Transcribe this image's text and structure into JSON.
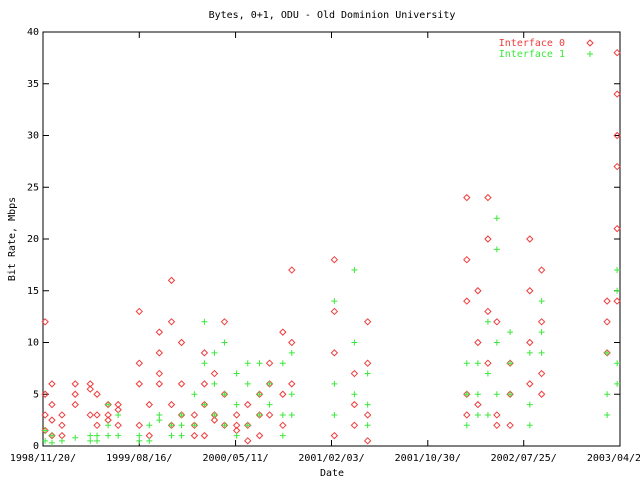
{
  "chart_data": {
    "type": "scatter",
    "title": "Bytes, 0+1, ODU - Old Dominion University",
    "x_label": "Date",
    "y_label": "Bit Rate, Mbps",
    "xlim": [
      "1998-11-20",
      "2003-04-20"
    ],
    "xticks": [
      {
        "value": "1998-11-20",
        "label": "1998/11/20/"
      },
      {
        "value": "1999-08-16",
        "label": "1999/08/16/"
      },
      {
        "value": "2000-05-11",
        "label": "2000/05/11/"
      },
      {
        "value": "2001-02-03",
        "label": "2001/02/03/"
      },
      {
        "value": "2001-10-30",
        "label": "2001/10/30/"
      },
      {
        "value": "2002-07-25",
        "label": "2002/07/25/"
      },
      {
        "value": "2003-04-20",
        "label": "2003/04/20/"
      }
    ],
    "ylim": [
      0,
      40
    ],
    "yticks": [
      0,
      5,
      10,
      15,
      20,
      25,
      30,
      35,
      40
    ],
    "legend": "top-right",
    "series": [
      {
        "name": "Interface 0",
        "color": "#f03c3c",
        "marker": "diamond",
        "x": [
          "1998-11-26",
          "1998-11-26",
          "1998-11-26",
          "1998-11-26",
          "1998-12-15",
          "1998-12-15",
          "1998-12-15",
          "1998-12-15",
          "1999-01-12",
          "1999-01-12",
          "1999-01-12",
          "1999-02-18",
          "1999-02-18",
          "1999-02-18",
          "1999-04-01",
          "1999-04-01",
          "1999-04-01",
          "1999-04-20",
          "1999-04-20",
          "1999-04-20",
          "1999-05-21",
          "1999-05-21",
          "1999-05-21",
          "1999-06-18",
          "1999-06-18",
          "1999-06-18",
          "1999-08-16",
          "1999-08-16",
          "1999-08-16",
          "1999-08-16",
          "1999-09-13",
          "1999-09-13",
          "1999-10-11",
          "1999-10-11",
          "1999-10-11",
          "1999-10-11",
          "1999-11-14",
          "1999-11-14",
          "1999-11-14",
          "1999-11-14",
          "1999-12-12",
          "1999-12-12",
          "1999-12-12",
          "2000-01-17",
          "2000-01-17",
          "2000-01-17",
          "2000-02-14",
          "2000-02-14",
          "2000-02-14",
          "2000-02-14",
          "2000-03-13",
          "2000-03-13",
          "2000-03-13",
          "2000-04-10",
          "2000-04-10",
          "2000-04-10",
          "2000-05-14",
          "2000-05-14",
          "2000-05-14",
          "2000-06-14",
          "2000-06-14",
          "2000-06-14",
          "2000-07-17",
          "2000-07-17",
          "2000-07-17",
          "2000-08-14",
          "2000-08-14",
          "2000-08-14",
          "2000-09-20",
          "2000-09-20",
          "2000-09-20",
          "2000-10-15",
          "2000-10-15",
          "2000-10-15",
          "2001-02-11",
          "2001-02-11",
          "2001-02-11",
          "2001-02-11",
          "2001-04-08",
          "2001-04-08",
          "2001-04-08",
          "2001-05-15",
          "2001-05-15",
          "2001-05-15",
          "2001-05-15",
          "2002-02-16",
          "2002-02-16",
          "2002-02-16",
          "2002-02-16",
          "2002-02-16",
          "2002-03-19",
          "2002-03-19",
          "2002-03-19",
          "2002-04-16",
          "2002-04-16",
          "2002-04-16",
          "2002-04-16",
          "2002-05-11",
          "2002-05-11",
          "2002-05-11",
          "2002-06-17",
          "2002-06-17",
          "2002-06-17",
          "2002-08-11",
          "2002-08-11",
          "2002-08-11",
          "2002-08-11",
          "2002-09-13",
          "2002-09-13",
          "2002-09-13",
          "2002-09-13",
          "2003-03-15",
          "2003-03-15",
          "2003-03-15",
          "2003-04-12",
          "2003-04-12",
          "2003-04-12",
          "2003-04-12",
          "2003-04-12",
          "2003-04-12"
        ],
        "values": [
          5,
          3,
          1.5,
          12,
          4,
          6,
          2.5,
          1,
          2,
          1,
          3,
          5,
          6,
          4,
          6,
          3,
          5.5,
          5,
          3,
          2,
          4,
          3,
          2.5,
          4,
          2,
          3.5,
          13,
          8,
          6,
          2,
          4,
          1,
          11,
          9,
          7,
          6,
          16,
          12,
          4,
          2,
          10,
          6,
          3,
          3,
          2,
          1,
          9,
          6,
          4,
          1,
          7,
          3,
          2.5,
          12,
          5,
          2,
          3,
          2,
          1.5,
          4,
          2,
          0.5,
          5,
          3,
          1,
          6,
          8,
          3,
          11,
          5,
          2,
          17,
          10,
          6,
          18,
          13,
          9,
          1,
          7,
          4,
          2,
          12,
          8,
          3,
          0.5,
          24,
          18,
          14,
          5,
          3,
          15,
          10,
          4,
          24,
          20,
          13,
          8,
          12,
          3,
          2,
          8,
          5,
          2,
          20,
          15,
          10,
          6,
          17,
          12,
          7,
          5,
          14,
          12,
          9,
          38,
          34,
          30,
          27,
          21,
          14
        ]
      },
      {
        "name": "Interface 1",
        "color": "#3ce83c",
        "marker": "plus",
        "x": [
          "1998-11-26",
          "1998-11-26",
          "1998-12-15",
          "1998-12-15",
          "1999-01-12",
          "1999-02-18",
          "1999-04-01",
          "1999-04-01",
          "1999-04-20",
          "1999-04-20",
          "1999-05-21",
          "1999-05-21",
          "1999-05-21",
          "1999-06-18",
          "1999-06-18",
          "1999-08-16",
          "1999-08-16",
          "1999-09-13",
          "1999-09-13",
          "1999-10-11",
          "1999-10-11",
          "1999-11-14",
          "1999-11-14",
          "1999-12-12",
          "1999-12-12",
          "1999-12-12",
          "2000-01-17",
          "2000-01-17",
          "2000-02-14",
          "2000-02-14",
          "2000-02-14",
          "2000-03-13",
          "2000-03-13",
          "2000-03-13",
          "2000-04-10",
          "2000-04-10",
          "2000-04-10",
          "2000-05-14",
          "2000-05-14",
          "2000-05-14",
          "2000-06-14",
          "2000-06-14",
          "2000-06-14",
          "2000-07-17",
          "2000-07-17",
          "2000-07-17",
          "2000-08-14",
          "2000-08-14",
          "2000-09-20",
          "2000-09-20",
          "2000-09-20",
          "2000-10-15",
          "2000-10-15",
          "2000-10-15",
          "2001-02-11",
          "2001-02-11",
          "2001-02-11",
          "2001-04-08",
          "2001-04-08",
          "2001-04-08",
          "2001-05-15",
          "2001-05-15",
          "2001-05-15",
          "2002-02-16",
          "2002-02-16",
          "2002-02-16",
          "2002-03-19",
          "2002-03-19",
          "2002-03-19",
          "2002-04-16",
          "2002-04-16",
          "2002-04-16",
          "2002-05-11",
          "2002-05-11",
          "2002-05-11",
          "2002-05-11",
          "2002-06-17",
          "2002-06-17",
          "2002-06-17",
          "2002-08-11",
          "2002-08-11",
          "2002-08-11",
          "2002-09-13",
          "2002-09-13",
          "2002-09-13",
          "2003-03-15",
          "2003-03-15",
          "2003-03-15",
          "2003-04-12",
          "2003-04-12",
          "2003-04-12",
          "2003-04-12"
        ],
        "values": [
          1.5,
          0.5,
          1,
          0.3,
          0.5,
          0.8,
          1,
          0.5,
          0.5,
          1,
          4,
          2,
          1,
          3,
          1,
          1,
          0.5,
          2,
          0.5,
          3,
          2.5,
          2,
          1,
          3,
          2,
          1,
          5,
          2,
          12,
          8,
          4,
          9,
          6,
          3,
          10,
          5,
          2,
          7,
          4,
          1,
          8,
          6,
          2,
          8,
          5,
          3,
          6,
          4,
          8,
          3,
          1,
          9,
          5,
          3,
          14,
          6,
          3,
          17,
          10,
          5,
          7,
          4,
          2,
          8,
          5,
          2,
          8,
          5,
          3,
          12,
          7,
          3,
          22,
          19,
          10,
          5,
          11,
          8,
          5,
          9,
          4,
          2,
          14,
          11,
          9,
          9,
          5,
          3,
          17,
          15,
          8,
          6
        ]
      }
    ]
  }
}
